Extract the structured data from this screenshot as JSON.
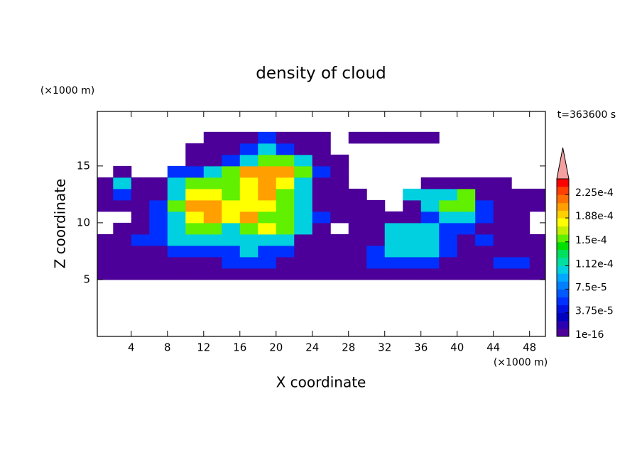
{
  "chart_data": {
    "type": "contour",
    "title": "density of cloud",
    "x_label": "X coordinate",
    "y_label": "Z coordinate",
    "x_unit": "(×1000 m)",
    "y_unit": "(×1000 m)",
    "time_label": "t=363600 s",
    "xlim": [
      0.25,
      49.75
    ],
    "ylim": [
      0,
      19.8
    ],
    "xticks": [
      4,
      8,
      12,
      16,
      20,
      24,
      28,
      32,
      36,
      40,
      44,
      48
    ],
    "yticks": [
      5,
      10,
      15
    ],
    "x_bins": [
      0,
      2,
      4,
      6,
      8,
      10,
      12,
      14,
      16,
      18,
      20,
      22,
      24,
      26,
      28,
      30,
      32,
      34,
      36,
      38,
      40,
      42,
      44,
      46,
      48,
      50
    ],
    "z_bins": [
      5,
      6,
      7,
      8,
      9,
      10,
      11,
      12,
      13,
      14,
      15,
      16,
      17,
      18
    ],
    "values": [
      [
        1e-16,
        1e-16,
        1e-16,
        1e-16,
        1e-16,
        1e-16,
        1e-16,
        1e-16,
        1e-16,
        1e-16,
        1e-16,
        1e-16,
        1e-16,
        1e-16,
        1e-16,
        1e-16,
        1e-16,
        1e-16,
        1e-16,
        1e-16,
        1e-16,
        1e-16,
        1e-16,
        1e-16,
        1e-16
      ],
      [
        1e-16,
        1e-16,
        1e-16,
        1e-16,
        1e-16,
        1e-16,
        1e-16,
        5e-05,
        5e-05,
        5e-05,
        1e-16,
        1e-16,
        1e-16,
        1e-16,
        1e-16,
        5e-05,
        5e-05,
        5e-05,
        5e-05,
        1e-16,
        1e-16,
        1e-16,
        5e-05,
        5e-05,
        1e-16
      ],
      [
        1e-16,
        1e-16,
        1e-16,
        1e-16,
        5e-05,
        5e-05,
        5e-05,
        5e-05,
        0.0001,
        5e-05,
        5e-05,
        1e-16,
        1e-16,
        1e-16,
        1e-16,
        5e-05,
        0.0001,
        0.0001,
        0.0001,
        5e-05,
        1e-16,
        1e-16,
        1e-16,
        1e-16,
        1e-16
      ],
      [
        1e-16,
        1e-16,
        5e-05,
        5e-05,
        0.0001,
        0.0001,
        0.0001,
        0.0001,
        0.0001,
        0.0001,
        0.0001,
        1e-16,
        1e-16,
        1e-16,
        1e-16,
        1e-16,
        0.0001,
        0.0001,
        0.0001,
        5e-05,
        1e-16,
        5e-05,
        1e-16,
        1e-16,
        1e-16
      ],
      [
        null,
        1e-16,
        1e-16,
        5e-05,
        0.0001,
        0.00015,
        0.00015,
        0.0001,
        0.00015,
        0.00018,
        0.00015,
        0.0001,
        1e-16,
        null,
        1e-16,
        1e-16,
        0.0001,
        0.0001,
        0.0001,
        5e-05,
        5e-05,
        1e-16,
        1e-16,
        1e-16,
        null
      ],
      [
        null,
        null,
        1e-16,
        5e-05,
        0.0001,
        0.00018,
        0.0002,
        0.00018,
        0.0002,
        0.00015,
        0.00015,
        0.0001,
        5e-05,
        1e-16,
        1e-16,
        1e-16,
        1e-16,
        1e-16,
        5e-05,
        0.0001,
        0.0001,
        5e-05,
        1e-16,
        1e-16,
        null
      ],
      [
        1e-16,
        1e-16,
        1e-16,
        5e-05,
        0.00015,
        0.0002,
        0.0002,
        0.00018,
        0.00018,
        0.00018,
        0.00015,
        0.0001,
        1e-16,
        1e-16,
        1e-16,
        1e-16,
        null,
        1e-16,
        0.0001,
        0.00015,
        0.00015,
        5e-05,
        1e-16,
        1e-16,
        1e-16
      ],
      [
        1e-16,
        5e-05,
        1e-16,
        1e-16,
        0.0001,
        0.00018,
        0.00018,
        0.00015,
        0.00018,
        0.0002,
        0.00015,
        0.0001,
        1e-16,
        1e-16,
        1e-16,
        null,
        null,
        0.0001,
        0.0001,
        0.0001,
        0.00015,
        1e-16,
        1e-16,
        1e-16,
        1e-16
      ],
      [
        1e-16,
        0.0001,
        1e-16,
        1e-16,
        0.0001,
        0.00015,
        0.00015,
        0.00015,
        0.00018,
        0.0002,
        0.00018,
        0.0001,
        1e-16,
        1e-16,
        null,
        null,
        null,
        null,
        1e-16,
        1e-16,
        1e-16,
        1e-16,
        1e-16,
        null,
        null
      ],
      [
        null,
        1e-16,
        null,
        null,
        5e-05,
        5e-05,
        0.0001,
        0.00015,
        0.0002,
        0.0002,
        0.0002,
        0.00015,
        5e-05,
        1e-16,
        null,
        null,
        null,
        null,
        null,
        null,
        null,
        null,
        null,
        null,
        null
      ],
      [
        null,
        null,
        null,
        null,
        null,
        1e-16,
        1e-16,
        5e-05,
        0.0001,
        0.00015,
        0.00015,
        0.0001,
        1e-16,
        1e-16,
        null,
        null,
        null,
        null,
        null,
        null,
        null,
        null,
        null,
        null,
        null
      ],
      [
        null,
        null,
        null,
        null,
        null,
        1e-16,
        1e-16,
        1e-16,
        5e-05,
        0.0001,
        5e-05,
        1e-16,
        1e-16,
        null,
        null,
        null,
        null,
        null,
        null,
        null,
        null,
        null,
        null,
        null,
        null
      ],
      [
        null,
        null,
        null,
        null,
        null,
        null,
        1e-16,
        1e-16,
        1e-16,
        5e-05,
        1e-16,
        1e-16,
        1e-16,
        null,
        1e-16,
        1e-16,
        1e-16,
        1e-16,
        1e-16,
        null,
        null,
        null,
        null,
        null,
        null
      ]
    ],
    "levels": [
      1e-16,
      1.25e-05,
      2.5e-05,
      3.75e-05,
      5e-05,
      6.25e-05,
      7.5e-05,
      8.75e-05,
      0.0001,
      0.000112,
      0.000125,
      0.000138,
      0.00015,
      0.000162,
      0.000175,
      0.000188,
      0.0002,
      0.000212,
      0.000225,
      0.000238
    ],
    "colors": [
      "#4c0099",
      "#2a00b0",
      "#0000c0",
      "#0010e0",
      "#0030ff",
      "#0058ff",
      "#0080ff",
      "#00a8ff",
      "#00d0e0",
      "#00e0a0",
      "#00e060",
      "#00e000",
      "#60f000",
      "#c0f000",
      "#ffff00",
      "#ffd000",
      "#ffa000",
      "#ff7000",
      "#ff4000",
      "#ff0000"
    ],
    "extend_color": "#f4a0a0",
    "colorbar_lim": [
      1e-16,
      0.00025
    ],
    "colorbar_ticks": [
      {
        "value": 1e-16,
        "label": "1e-16"
      },
      {
        "value": 3.75e-05,
        "label": "3.75e-5"
      },
      {
        "value": 7.5e-05,
        "label": "7.5e-5"
      },
      {
        "value": 0.000112,
        "label": "1.12e-4"
      },
      {
        "value": 0.00015,
        "label": "1.5e-4"
      },
      {
        "value": 0.000188,
        "label": "1.88e-4"
      },
      {
        "value": 0.000225,
        "label": "2.25e-4"
      }
    ]
  }
}
